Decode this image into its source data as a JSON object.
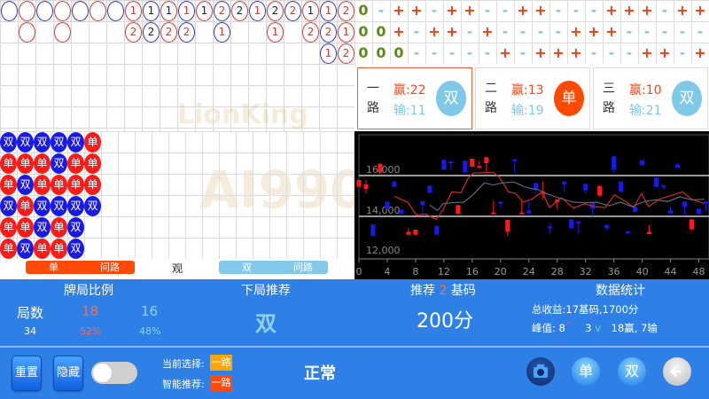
{
  "road": {
    "row1": [
      [
        "#3030e0",
        ""
      ],
      [
        "#e83030",
        ""
      ],
      [
        "#3030e0",
        ""
      ],
      [
        "#e83030",
        ""
      ],
      [
        "#3030e0",
        ""
      ],
      [
        "#e83030",
        ""
      ],
      [
        "#3030e0",
        ""
      ],
      [
        "#e83030",
        "1",
        "#e83030"
      ],
      [
        "#3030e0",
        "1",
        "#222"
      ],
      [
        "#e83030",
        "1",
        "#222"
      ],
      [
        "#3030e0",
        "1",
        "#e83030"
      ],
      [
        "#e83030",
        "1",
        "#222"
      ],
      [
        "#3030e0",
        "2",
        "#e83030"
      ],
      [
        "#e83030",
        "2",
        "#222"
      ],
      [
        "#3030e0",
        "1",
        "#e83030"
      ],
      [
        "#e83030",
        "2",
        "#222"
      ],
      [
        "#3030e0",
        "2",
        "#e83030"
      ],
      [
        "#e83030",
        "1",
        "#222"
      ],
      [
        "#3030e0",
        "1",
        "#e83030"
      ],
      [
        "#e83030",
        "2",
        "#e83030"
      ]
    ],
    "row2": [
      [
        1,
        "#e83030",
        ""
      ],
      [
        3,
        "#e83030",
        ""
      ],
      [
        7,
        "#e83030",
        "2",
        "#e83030"
      ],
      [
        8,
        "#3030e0",
        "2",
        "#222"
      ],
      [
        9,
        "#e83030",
        "2",
        "#e83030"
      ],
      [
        10,
        "#3030e0",
        "2",
        "#e83030"
      ],
      [
        12,
        "#3030e0",
        "1",
        "#e83030"
      ],
      [
        15,
        "#e83030",
        "1",
        "#e83030"
      ],
      [
        17,
        "#e83030",
        "2",
        "#e83030"
      ],
      [
        18,
        "#3030e0",
        "2",
        "#e83030"
      ],
      [
        19,
        "#e83030",
        "1",
        "#e83030"
      ]
    ],
    "row3": [
      [
        18,
        "#3030e0",
        "1",
        "#e83030"
      ],
      [
        19,
        "#e83030",
        "2",
        "#e83030"
      ]
    ]
  },
  "watermark": {
    "line1": "LionKing",
    "line2": "AI990"
  },
  "plus_grid": [
    [
      "0",
      "-",
      "+",
      "+",
      "-",
      "+",
      "+",
      "-",
      "-",
      "+",
      "+",
      "-",
      "-",
      "-",
      "+",
      "+",
      "+",
      "-",
      "+",
      "+"
    ],
    [
      "0",
      "0",
      "+",
      "-",
      "+",
      "+",
      "-",
      "+",
      "-",
      "-",
      "-",
      "-",
      "+",
      "+",
      "+",
      "-",
      "-",
      "-",
      "-",
      "-"
    ],
    [
      "0",
      "0",
      "0",
      "-",
      "-",
      "-",
      "-",
      "-",
      "+",
      "-",
      "+",
      "+",
      "+",
      "-",
      "-",
      "-",
      "+",
      "+",
      "-",
      "+"
    ]
  ],
  "cards": [
    {
      "lane1": "一",
      "lane2": "路",
      "win": "赢:22",
      "lose": "输:11",
      "result": "双",
      "result_color": "#7ec8e8",
      "border": "#f06030"
    },
    {
      "lane1": "二",
      "lane2": "路",
      "win": "赢:13",
      "lose": "输:19",
      "result": "单",
      "result_color": "#ff4a00",
      "border": "#ddd"
    },
    {
      "lane1": "三",
      "lane2": "路",
      "win": "赢:10",
      "lose": "输:21",
      "result": "双",
      "result_color": "#7ec8e8",
      "border": "#ddd"
    }
  ],
  "bead_plate": [
    [
      "双",
      "双",
      "双",
      "双",
      "双",
      "单"
    ],
    [
      "单",
      "单",
      "单",
      "双",
      "单",
      "单"
    ],
    [
      "单",
      "双",
      "单",
      "单",
      "单",
      "单"
    ],
    [
      "双",
      "单",
      "双",
      "双",
      "双",
      "双"
    ],
    [
      "单",
      "单",
      "双",
      "单",
      "双"
    ],
    [
      "单",
      "双",
      "单",
      "单",
      "双"
    ]
  ],
  "colors": {
    "single": "#ff1a1a",
    "double": "#1a1ae6",
    "panel": "#2f80e6"
  },
  "ask_road": {
    "single_label": "单",
    "single_ask": "问路",
    "observe": "观",
    "double_label": "双",
    "double_ask": "问路"
  },
  "chart_data": {
    "type": "candlestick",
    "xlim": [
      0,
      49
    ],
    "ylim": [
      11900,
      18000
    ],
    "x_ticks": [
      "0",
      "4",
      "8",
      "12",
      "16",
      "20",
      "24",
      "28",
      "32",
      "36",
      "40",
      "44",
      "48"
    ],
    "y_ticks": [
      "12,000",
      "14,000",
      "16,000"
    ],
    "gridlines": [
      14000,
      16000
    ],
    "up_color": "#ff1a1a",
    "down_color": "#1a1ae6",
    "candles": [
      {
        "x": 0,
        "o": 15449,
        "c": 15782,
        "h": 15782,
        "l": 15449
      },
      {
        "x": 1,
        "o": 15348,
        "c": 15565,
        "h": 15782,
        "l": 15130
      },
      {
        "x": 2,
        "o": 13608,
        "c": 13028,
        "h": 13608,
        "l": 13028
      },
      {
        "x": 3,
        "o": 16145,
        "c": 16580,
        "h": 16580,
        "l": 16145
      },
      {
        "x": 4,
        "o": 14724,
        "c": 14376,
        "h": 14724,
        "l": 14376
      },
      {
        "x": 5,
        "o": 15710,
        "c": 15449,
        "h": 15710,
        "l": 15449
      },
      {
        "x": 6,
        "o": 14333,
        "c": 14115,
        "h": 14333,
        "l": 14115
      },
      {
        "x": 7,
        "o": 13100,
        "c": 13245,
        "h": 13419,
        "l": 13100
      },
      {
        "x": 8,
        "o": 13100,
        "c": 13347,
        "h": 13347,
        "l": 13100
      },
      {
        "x": 9,
        "o": 14739,
        "c": 14550,
        "h": 14739,
        "l": 14115
      },
      {
        "x": 10,
        "o": 15493,
        "c": 15159,
        "h": 15493,
        "l": 15159
      },
      {
        "x": 11,
        "o": 13535,
        "c": 13100,
        "h": 13535,
        "l": 13100
      },
      {
        "x": 12,
        "o": 16769,
        "c": 16290,
        "h": 16769,
        "l": 16290
      },
      {
        "x": 13,
        "o": 16696,
        "c": 16653,
        "h": 16696,
        "l": 16290
      },
      {
        "x": 14,
        "o": 14115,
        "c": 14550,
        "h": 14550,
        "l": 14115
      },
      {
        "x": 15,
        "o": 16725,
        "c": 16145,
        "h": 16725,
        "l": 16145
      },
      {
        "x": 16,
        "o": 16435,
        "c": 16827,
        "h": 16827,
        "l": 16435
      },
      {
        "x": 17,
        "o": 16377,
        "c": 16464,
        "h": 16725,
        "l": 16377
      },
      {
        "x": 18,
        "o": 16609,
        "c": 16899,
        "h": 16899,
        "l": 16218
      },
      {
        "x": 19,
        "o": 14115,
        "c": 14188,
        "h": 14768,
        "l": 14115
      },
      {
        "x": 20,
        "o": 14724,
        "c": 14623,
        "h": 14724,
        "l": 14434
      },
      {
        "x": 21,
        "o": 13245,
        "c": 13825,
        "h": 13825,
        "l": 13028
      },
      {
        "x": 22,
        "o": 16798,
        "c": 16754,
        "h": 16798,
        "l": 16145
      },
      {
        "x": 23,
        "o": 14115,
        "c": 14188,
        "h": 14840,
        "l": 14115
      },
      {
        "x": 24,
        "o": 14289,
        "c": 14144,
        "h": 14695,
        "l": 14144
      },
      {
        "x": 25,
        "o": 15638,
        "c": 15348,
        "h": 15638,
        "l": 15130
      },
      {
        "x": 26,
        "o": 15101,
        "c": 15203,
        "h": 15710,
        "l": 14840
      },
      {
        "x": 27,
        "o": 13506,
        "c": 13448,
        "h": 13680,
        "l": 13173
      },
      {
        "x": 28,
        "o": 14695,
        "c": 14840,
        "h": 14840,
        "l": 14333
      },
      {
        "x": 29,
        "o": 15710,
        "c": 15565,
        "h": 15710,
        "l": 15203
      },
      {
        "x": 30,
        "o": 13854,
        "c": 13419,
        "h": 13854,
        "l": 13419
      },
      {
        "x": 31,
        "o": 13752,
        "c": 13651,
        "h": 13752,
        "l": 13173
      },
      {
        "x": 32,
        "o": 15594,
        "c": 15275,
        "h": 15594,
        "l": 15130
      },
      {
        "x": 33,
        "o": 14695,
        "c": 14376,
        "h": 14695,
        "l": 14000
      },
      {
        "x": 34,
        "o": 15014,
        "c": 15493,
        "h": 15493,
        "l": 15014
      },
      {
        "x": 35,
        "o": 13579,
        "c": 13419,
        "h": 13579,
        "l": 13318
      },
      {
        "x": 36,
        "o": 16943,
        "c": 16290,
        "h": 16943,
        "l": 16145
      },
      {
        "x": 37,
        "o": 15710,
        "c": 15203,
        "h": 15710,
        "l": 15203
      },
      {
        "x": 38,
        "o": 13274,
        "c": 13173,
        "h": 13274,
        "l": 13173
      },
      {
        "x": 39,
        "o": 14478,
        "c": 14231,
        "h": 14478,
        "l": 14231
      },
      {
        "x": 40,
        "o": 16754,
        "c": 16508,
        "h": 16754,
        "l": 16508
      },
      {
        "x": 41,
        "o": 13129,
        "c": 13245,
        "h": 13564,
        "l": 13129
      },
      {
        "x": 42,
        "o": 15899,
        "c": 15449,
        "h": 15899,
        "l": 15449
      },
      {
        "x": 43,
        "o": 15536,
        "c": 15464,
        "h": 15536,
        "l": 15348
      },
      {
        "x": 44,
        "o": 14289,
        "c": 14144,
        "h": 14478,
        "l": 14144
      },
      {
        "x": 45,
        "o": 16537,
        "c": 16392,
        "h": 16609,
        "l": 16392
      },
      {
        "x": 46,
        "o": 14724,
        "c": 14478,
        "h": 14724,
        "l": 14043
      },
      {
        "x": 47,
        "o": 13361,
        "c": 13854,
        "h": 13854,
        "l": 13361
      },
      {
        "x": 48,
        "o": 14376,
        "c": 14115,
        "h": 14376,
        "l": 14115
      },
      {
        "x": 49,
        "o": 14724,
        "c": 14623,
        "h": 14724,
        "l": 14260
      }
    ],
    "lines": [
      {
        "color": "#d02828",
        "points": [
          [
            5,
            14985
          ],
          [
            6.9,
            14695
          ],
          [
            8.1,
            14072
          ],
          [
            9.4,
            14115
          ],
          [
            10.9,
            13854
          ],
          [
            11.9,
            14333
          ],
          [
            13.1,
            15203
          ],
          [
            14.4,
            15159
          ],
          [
            15.4,
            15855
          ],
          [
            16.1,
            16116
          ],
          [
            17.7,
            16145
          ],
          [
            19,
            16145
          ],
          [
            19.8,
            15928
          ],
          [
            21.1,
            15203
          ],
          [
            22.1,
            15130
          ],
          [
            23.2,
            14695
          ],
          [
            24.4,
            14840
          ],
          [
            25.9,
            15203
          ],
          [
            26.9,
            14434
          ],
          [
            28.6,
            14913
          ],
          [
            30.3,
            14405
          ],
          [
            31.9,
            14623
          ],
          [
            33.2,
            14478
          ],
          [
            34.8,
            14434
          ],
          [
            36.1,
            15058
          ],
          [
            37.8,
            14695
          ],
          [
            38.8,
            14434
          ],
          [
            39.9,
            15130
          ],
          [
            40.9,
            14478
          ],
          [
            42.4,
            14840
          ],
          [
            44,
            15014
          ],
          [
            45.7,
            15203
          ],
          [
            47,
            14840
          ],
          [
            48.8,
            14623
          ]
        ]
      },
      {
        "color": "#5a6a78",
        "points": [
          [
            10,
            14550
          ],
          [
            11.1,
            14289
          ],
          [
            11.9,
            14623
          ],
          [
            13.1,
            14666
          ],
          [
            14.8,
            14695
          ],
          [
            16.1,
            15058
          ],
          [
            17.7,
            15638
          ],
          [
            19,
            15536
          ],
          [
            20.2,
            15638
          ],
          [
            21.9,
            15681
          ],
          [
            23.6,
            15420
          ],
          [
            25.3,
            15304
          ],
          [
            26.9,
            15058
          ],
          [
            28.6,
            14869
          ],
          [
            30.3,
            14695
          ],
          [
            31.9,
            14666
          ],
          [
            33.6,
            14695
          ],
          [
            35.3,
            14521
          ],
          [
            36.9,
            14695
          ],
          [
            38.6,
            14478
          ],
          [
            40.3,
            14724
          ],
          [
            41.9,
            14811
          ],
          [
            43.6,
            14724
          ],
          [
            45.3,
            14956
          ],
          [
            47,
            14811
          ],
          [
            48.8,
            14840
          ]
        ]
      }
    ]
  },
  "panel": {
    "ratio_title": "牌局比例",
    "rounds_label": "局数",
    "rounds": "34",
    "single_count": "18",
    "single_pct": "52%",
    "double_count": "16",
    "double_pct": "48%",
    "next_title": "下局推荐",
    "next_value": "双",
    "bet_title_a": "推荐",
    "bet_units": "2",
    "bet_title_b": "基码",
    "bet_value": "200分",
    "stats_title": "数据统计",
    "total": "总收益:17基码,1700分",
    "peak_label": "峰值: 8",
    "peak_up": "^",
    "low": "3",
    "low_mark": "v",
    "record": "18赢, 7输",
    "reset": "重置",
    "hide": "隐藏",
    "toggle_on": false,
    "current_label": "当前选择:",
    "current_value": "一路",
    "smart_label": "智能推荐:",
    "smart_value": "一路",
    "status": "正常",
    "single_btn": "单",
    "double_btn": "双"
  }
}
